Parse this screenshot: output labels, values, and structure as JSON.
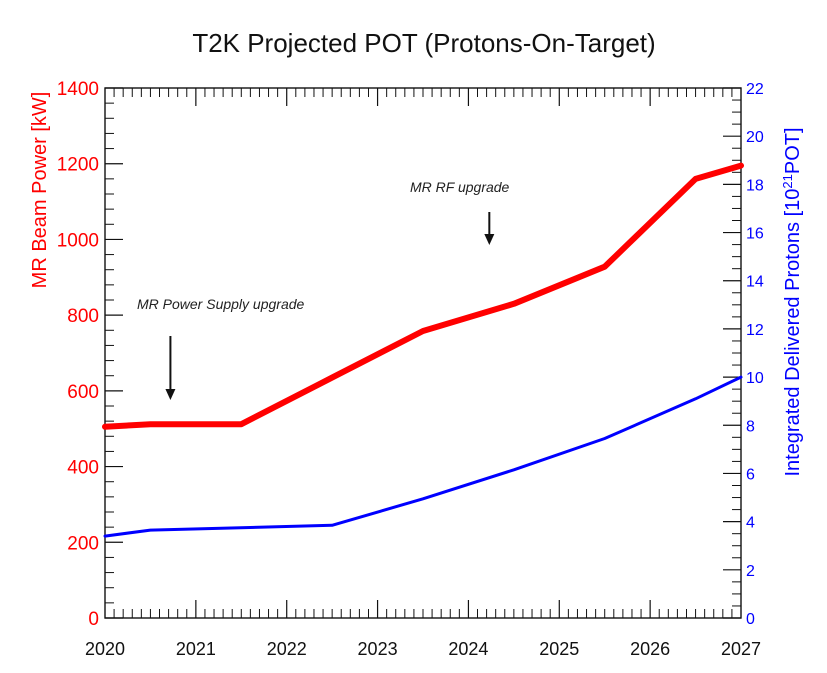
{
  "chart_data": {
    "type": "line",
    "title": "T2K Projected POT (Protons-On-Target)",
    "xlabel": "",
    "x_ticks": [
      "2020",
      "2021",
      "2022",
      "2023",
      "2024",
      "2025",
      "2026",
      "2027"
    ],
    "xlim": [
      2020,
      2027
    ],
    "y_left": {
      "label": "MR Beam Power [kW]",
      "ylim": [
        0,
        1400
      ],
      "ticks": [
        "0",
        "200",
        "400",
        "600",
        "800",
        "1000",
        "1200",
        "1400"
      ],
      "color": "#ff0000"
    },
    "y_right": {
      "label_base": "Integrated Delivered Protons [10",
      "label_sup": "21",
      "label_end": "POT]",
      "ylim": [
        0,
        22
      ],
      "ticks": [
        "0",
        "2",
        "4",
        "6",
        "8",
        "10",
        "12",
        "14",
        "16",
        "18",
        "20",
        "22"
      ],
      "color": "#0000ff"
    },
    "series": [
      {
        "axis": "left",
        "color": "#ff0000",
        "points": [
          [
            2020.0,
            505
          ],
          [
            2020.5,
            512
          ],
          [
            2021.5,
            512
          ],
          [
            2022.5,
            635
          ],
          [
            2023.5,
            758
          ],
          [
            2024.5,
            830
          ],
          [
            2025.5,
            928
          ],
          [
            2026.5,
            1160
          ],
          [
            2027.0,
            1195
          ]
        ]
      },
      {
        "axis": "right",
        "color": "#0000ff",
        "points": [
          [
            2020.0,
            3.4
          ],
          [
            2020.5,
            3.65
          ],
          [
            2022.5,
            3.85
          ],
          [
            2023.5,
            4.95
          ],
          [
            2024.5,
            6.15
          ],
          [
            2025.5,
            7.45
          ],
          [
            2026.5,
            9.1
          ],
          [
            2027.0,
            10.0
          ]
        ]
      }
    ],
    "annotations": [
      {
        "text": "MR Power Supply upgrade",
        "arrow_x": 2020.72
      },
      {
        "text": "MR RF upgrade",
        "arrow_x": 2024.23
      }
    ],
    "grid": false
  }
}
